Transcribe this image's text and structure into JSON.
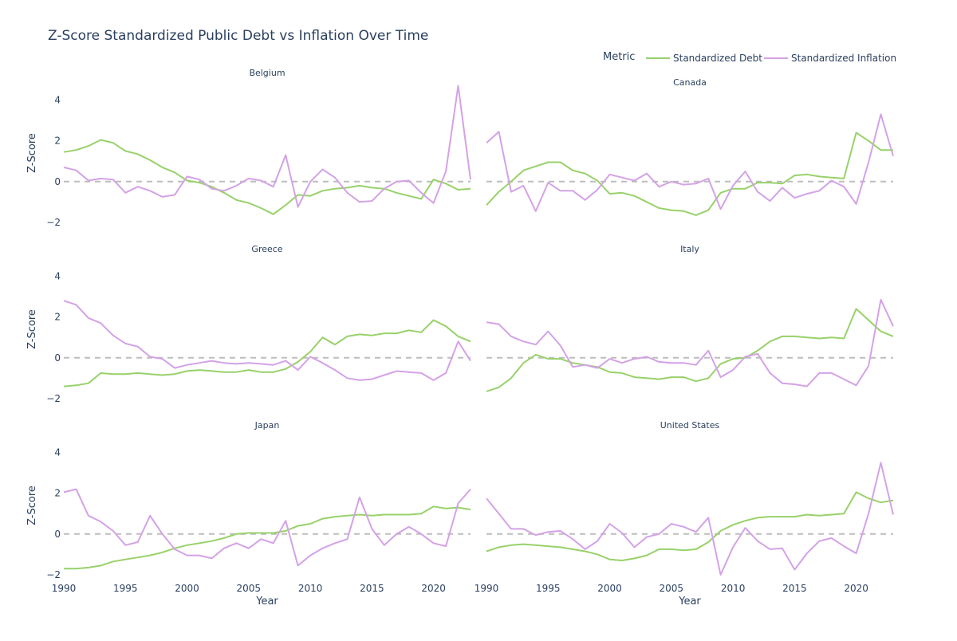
{
  "chart_data": {
    "type": "line",
    "title": "Z-Score Standardized Public Debt vs Inflation Over Time",
    "legend": {
      "title": "Metric",
      "position": "top-right",
      "entries": [
        "Standardized Debt",
        "Standardized Inflation"
      ]
    },
    "xlabel": "Year",
    "ylabel": "Z-Score",
    "xlim": [
      1990,
      2023
    ],
    "ylim": [
      -2.2,
      5.0
    ],
    "x_ticks": [
      1990,
      1995,
      2000,
      2005,
      2010,
      2015,
      2020
    ],
    "y_ticks": [
      -2,
      0,
      2,
      4
    ],
    "reference_line": 0,
    "colors": {
      "Standardized Debt": "#98d16a",
      "Standardized Inflation": "#d4a2e6"
    },
    "x": [
      1990,
      1991,
      1992,
      1993,
      1994,
      1995,
      1996,
      1997,
      1998,
      1999,
      2000,
      2001,
      2002,
      2003,
      2004,
      2005,
      2006,
      2007,
      2008,
      2009,
      2010,
      2011,
      2012,
      2013,
      2014,
      2015,
      2016,
      2017,
      2018,
      2019,
      2020,
      2021,
      2022,
      2023
    ],
    "panels": [
      {
        "country": "Belgium",
        "series": [
          {
            "name": "Standardized Debt",
            "values": [
              1.45,
              1.55,
              1.75,
              2.05,
              1.9,
              1.5,
              1.35,
              1.05,
              0.7,
              0.45,
              0.05,
              -0.05,
              -0.25,
              -0.55,
              -0.9,
              -1.05,
              -1.3,
              -1.6,
              -1.15,
              -0.65,
              -0.7,
              -0.45,
              -0.35,
              -0.3,
              -0.2,
              -0.3,
              -0.35,
              -0.55,
              -0.7,
              -0.85,
              0.1,
              -0.1,
              -0.4,
              -0.35
            ]
          },
          {
            "name": "Standardized Inflation",
            "values": [
              0.7,
              0.55,
              0.05,
              0.15,
              0.1,
              -0.55,
              -0.25,
              -0.45,
              -0.75,
              -0.65,
              0.25,
              0.1,
              -0.35,
              -0.45,
              -0.2,
              0.15,
              0.05,
              -0.25,
              1.3,
              -1.25,
              0.0,
              0.6,
              0.2,
              -0.55,
              -1.0,
              -0.95,
              -0.35,
              0.0,
              0.05,
              -0.55,
              -1.05,
              0.5,
              4.7,
              0.1
            ]
          }
        ]
      },
      {
        "country": "Canada",
        "series": [
          {
            "name": "Standardized Debt",
            "values": [
              -1.15,
              -0.5,
              0.0,
              0.55,
              0.75,
              0.95,
              0.95,
              0.55,
              0.4,
              0.05,
              -0.6,
              -0.55,
              -0.7,
              -1.0,
              -1.3,
              -1.4,
              -1.45,
              -1.65,
              -1.4,
              -0.55,
              -0.35,
              -0.35,
              -0.05,
              -0.05,
              -0.1,
              0.3,
              0.35,
              0.25,
              0.2,
              0.15,
              2.4,
              2.0,
              1.55,
              1.55
            ]
          },
          {
            "name": "Standardized Inflation",
            "values": [
              1.9,
              2.45,
              -0.5,
              -0.2,
              -1.45,
              -0.05,
              -0.45,
              -0.45,
              -0.9,
              -0.4,
              0.35,
              0.2,
              0.05,
              0.4,
              -0.25,
              0.0,
              -0.15,
              -0.1,
              0.15,
              -1.35,
              -0.2,
              0.5,
              -0.5,
              -0.95,
              -0.3,
              -0.8,
              -0.6,
              -0.45,
              0.05,
              -0.25,
              -1.1,
              0.95,
              3.3,
              1.25
            ]
          }
        ]
      },
      {
        "country": "Greece",
        "series": [
          {
            "name": "Standardized Debt",
            "values": [
              -1.4,
              -1.35,
              -1.25,
              -0.75,
              -0.8,
              -0.8,
              -0.75,
              -0.8,
              -0.85,
              -0.8,
              -0.65,
              -0.6,
              -0.65,
              -0.7,
              -0.7,
              -0.6,
              -0.7,
              -0.7,
              -0.55,
              -0.2,
              0.3,
              1.0,
              0.65,
              1.05,
              1.15,
              1.1,
              1.2,
              1.2,
              1.35,
              1.25,
              1.85,
              1.55,
              1.05,
              0.8
            ]
          },
          {
            "name": "Standardized Inflation",
            "values": [
              2.8,
              2.6,
              1.95,
              1.7,
              1.1,
              0.7,
              0.55,
              0.05,
              -0.05,
              -0.5,
              -0.35,
              -0.25,
              -0.15,
              -0.25,
              -0.3,
              -0.25,
              -0.3,
              -0.35,
              -0.15,
              -0.6,
              0.05,
              -0.25,
              -0.6,
              -1.0,
              -1.1,
              -1.05,
              -0.85,
              -0.65,
              -0.7,
              -0.75,
              -1.1,
              -0.75,
              0.8,
              -0.15
            ]
          }
        ]
      },
      {
        "country": "Italy",
        "series": [
          {
            "name": "Standardized Debt",
            "values": [
              -1.65,
              -1.45,
              -1.0,
              -0.25,
              0.15,
              -0.05,
              -0.05,
              -0.25,
              -0.35,
              -0.45,
              -0.7,
              -0.75,
              -0.95,
              -1.0,
              -1.05,
              -0.95,
              -0.95,
              -1.15,
              -1.0,
              -0.3,
              -0.05,
              0.0,
              0.35,
              0.8,
              1.05,
              1.05,
              1.0,
              0.95,
              1.0,
              0.95,
              2.4,
              1.85,
              1.3,
              1.05
            ]
          },
          {
            "name": "Standardized Inflation",
            "values": [
              1.75,
              1.65,
              1.05,
              0.8,
              0.65,
              1.3,
              0.6,
              -0.45,
              -0.35,
              -0.5,
              -0.05,
              -0.25,
              -0.05,
              0.05,
              -0.2,
              -0.25,
              -0.25,
              -0.35,
              0.35,
              -0.95,
              -0.6,
              0.05,
              0.2,
              -0.75,
              -1.25,
              -1.3,
              -1.4,
              -0.75,
              -0.75,
              -1.05,
              -1.35,
              -0.4,
              2.85,
              1.55
            ]
          }
        ]
      },
      {
        "country": "Japan",
        "series": [
          {
            "name": "Standardized Debt",
            "values": [
              -1.7,
              -1.7,
              -1.65,
              -1.55,
              -1.35,
              -1.25,
              -1.15,
              -1.05,
              -0.9,
              -0.7,
              -0.55,
              -0.45,
              -0.35,
              -0.2,
              0.0,
              0.05,
              0.05,
              0.05,
              0.15,
              0.4,
              0.5,
              0.75,
              0.85,
              0.9,
              0.95,
              0.9,
              0.95,
              0.95,
              0.95,
              1.0,
              1.35,
              1.25,
              1.3,
              1.2
            ]
          },
          {
            "name": "Standardized Inflation",
            "values": [
              2.05,
              2.2,
              0.9,
              0.6,
              0.15,
              -0.55,
              -0.4,
              0.9,
              0.0,
              -0.75,
              -1.05,
              -1.05,
              -1.2,
              -0.7,
              -0.45,
              -0.7,
              -0.25,
              -0.45,
              0.65,
              -1.55,
              -1.05,
              -0.7,
              -0.45,
              -0.25,
              1.8,
              0.25,
              -0.55,
              0.0,
              0.35,
              0.0,
              -0.45,
              -0.6,
              1.5,
              2.2
            ]
          }
        ]
      },
      {
        "country": "United States",
        "series": [
          {
            "name": "Standardized Debt",
            "values": [
              -0.85,
              -0.65,
              -0.55,
              -0.5,
              -0.55,
              -0.6,
              -0.65,
              -0.75,
              -0.85,
              -1.0,
              -1.25,
              -1.3,
              -1.2,
              -1.05,
              -0.75,
              -0.75,
              -0.8,
              -0.75,
              -0.4,
              0.15,
              0.45,
              0.65,
              0.8,
              0.85,
              0.85,
              0.85,
              0.95,
              0.9,
              0.95,
              1.0,
              2.05,
              1.75,
              1.55,
              1.65
            ]
          },
          {
            "name": "Standardized Inflation",
            "values": [
              1.75,
              1.0,
              0.25,
              0.25,
              -0.05,
              0.1,
              0.15,
              -0.25,
              -0.75,
              -0.35,
              0.5,
              0.05,
              -0.65,
              -0.15,
              0.0,
              0.5,
              0.35,
              0.1,
              0.8,
              -2.0,
              -0.65,
              0.3,
              -0.35,
              -0.75,
              -0.7,
              -1.75,
              -0.95,
              -0.35,
              -0.2,
              -0.6,
              -0.95,
              1.0,
              3.5,
              0.95
            ]
          }
        ]
      }
    ]
  }
}
